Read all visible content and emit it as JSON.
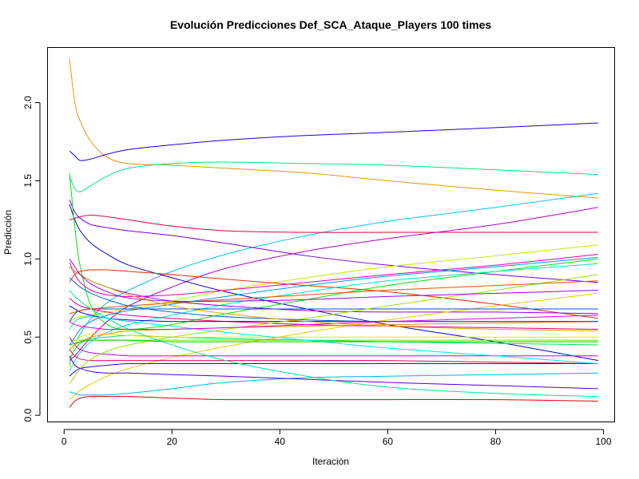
{
  "chart_data": {
    "type": "line",
    "title": "Evolución Predicciones Def_SCA_Ataque_Players 100 times",
    "xlabel": "Iteración",
    "ylabel": "Predicción",
    "xlim": [
      -3,
      102
    ],
    "ylim": [
      -0.04,
      2.35
    ],
    "xticks": [
      0,
      20,
      40,
      60,
      80,
      100
    ],
    "yticks": [
      0.0,
      0.5,
      1.0,
      1.5,
      2.0
    ],
    "xtick_labels": [
      "0",
      "20",
      "40",
      "60",
      "80",
      "100"
    ],
    "ytick_labels": [
      "0.0",
      "0.5",
      "1.0",
      "1.5",
      "2.0"
    ],
    "x": [
      1,
      2,
      3,
      5,
      8,
      12,
      20,
      30,
      45,
      60,
      80,
      99
    ],
    "series": [
      {
        "color": "#e69500",
        "values": [
          2.28,
          2.0,
          1.88,
          1.75,
          1.65,
          1.61,
          1.6,
          1.58,
          1.55,
          1.5,
          1.44,
          1.39
        ]
      },
      {
        "color": "#1a00e6",
        "values": [
          1.69,
          1.66,
          1.63,
          1.64,
          1.67,
          1.7,
          1.73,
          1.76,
          1.79,
          1.81,
          1.84,
          1.87
        ]
      },
      {
        "color": "#00e680",
        "values": [
          1.53,
          1.45,
          1.43,
          1.47,
          1.53,
          1.58,
          1.61,
          1.62,
          1.61,
          1.6,
          1.57,
          1.54
        ]
      },
      {
        "color": "#00c8e6",
        "values": [
          0.32,
          0.45,
          0.52,
          0.62,
          0.72,
          0.8,
          0.92,
          1.03,
          1.15,
          1.24,
          1.33,
          1.42
        ]
      },
      {
        "color": "#e6003c",
        "values": [
          1.25,
          1.26,
          1.27,
          1.28,
          1.27,
          1.25,
          1.21,
          1.18,
          1.17,
          1.17,
          1.17,
          1.17
        ]
      },
      {
        "color": "#b400c8",
        "values": [
          0.35,
          0.38,
          0.42,
          0.5,
          0.6,
          0.7,
          0.82,
          0.94,
          1.05,
          1.13,
          1.22,
          1.33
        ]
      },
      {
        "color": "#7800e6",
        "values": [
          1.38,
          1.3,
          1.26,
          1.22,
          1.2,
          1.18,
          1.15,
          1.1,
          1.02,
          0.96,
          0.9,
          0.85
        ]
      },
      {
        "color": "#0000c8",
        "values": [
          1.35,
          1.25,
          1.18,
          1.1,
          1.03,
          0.96,
          0.88,
          0.79,
          0.68,
          0.58,
          0.47,
          0.35
        ]
      },
      {
        "color": "#c8e600",
        "values": [
          0.6,
          0.62,
          0.63,
          0.64,
          0.66,
          0.68,
          0.73,
          0.8,
          0.88,
          0.95,
          1.02,
          1.09
        ]
      },
      {
        "color": "#00e600",
        "values": [
          1.55,
          1.2,
          0.95,
          0.7,
          0.58,
          0.55,
          0.58,
          0.65,
          0.74,
          0.83,
          0.92,
          1.0
        ]
      },
      {
        "color": "#e600b4",
        "values": [
          0.98,
          0.9,
          0.85,
          0.8,
          0.77,
          0.76,
          0.77,
          0.8,
          0.85,
          0.9,
          0.96,
          1.03
        ]
      },
      {
        "color": "#0096e6",
        "values": [
          0.45,
          0.5,
          0.55,
          0.6,
          0.64,
          0.67,
          0.71,
          0.76,
          0.83,
          0.89,
          0.95,
          1.01
        ]
      },
      {
        "color": "#e63200",
        "values": [
          0.85,
          0.9,
          0.92,
          0.93,
          0.93,
          0.92,
          0.9,
          0.87,
          0.83,
          0.79,
          0.71,
          0.62
        ]
      },
      {
        "color": "#00e6c8",
        "values": [
          0.28,
          0.35,
          0.4,
          0.47,
          0.53,
          0.58,
          0.64,
          0.71,
          0.79,
          0.86,
          0.92,
          0.97
        ]
      },
      {
        "color": "#9600e6",
        "values": [
          0.95,
          0.92,
          0.9,
          0.86,
          0.82,
          0.78,
          0.73,
          0.7,
          0.67,
          0.66,
          0.66,
          0.65
        ]
      },
      {
        "color": "#e6c800",
        "values": [
          0.1,
          0.13,
          0.16,
          0.2,
          0.25,
          0.3,
          0.37,
          0.44,
          0.53,
          0.61,
          0.7,
          0.78
        ]
      },
      {
        "color": "#0050e6",
        "values": [
          0.6,
          0.65,
          0.67,
          0.68,
          0.68,
          0.68,
          0.68,
          0.68,
          0.68,
          0.68,
          0.68,
          0.68
        ]
      },
      {
        "color": "#64e600",
        "values": [
          0.48,
          0.48,
          0.48,
          0.48,
          0.48,
          0.48,
          0.48,
          0.48,
          0.48,
          0.48,
          0.48,
          0.48
        ]
      },
      {
        "color": "#e60078",
        "values": [
          0.75,
          0.72,
          0.7,
          0.68,
          0.66,
          0.64,
          0.62,
          0.6,
          0.58,
          0.57,
          0.56,
          0.55
        ]
      },
      {
        "color": "#00b4e6",
        "values": [
          0.15,
          0.14,
          0.13,
          0.13,
          0.13,
          0.14,
          0.17,
          0.21,
          0.24,
          0.25,
          0.26,
          0.27
        ]
      },
      {
        "color": "#e60000",
        "values": [
          0.05,
          0.09,
          0.11,
          0.12,
          0.12,
          0.12,
          0.11,
          0.1,
          0.1,
          0.1,
          0.1,
          0.09
        ]
      },
      {
        "color": "#3200e6",
        "values": [
          0.25,
          0.28,
          0.3,
          0.31,
          0.32,
          0.33,
          0.33,
          0.33,
          0.33,
          0.33,
          0.33,
          0.33
        ]
      },
      {
        "color": "#e68c00",
        "values": [
          0.42,
          0.45,
          0.47,
          0.5,
          0.52,
          0.54,
          0.55,
          0.56,
          0.57,
          0.58,
          0.59,
          0.6
        ]
      },
      {
        "color": "#00e650",
        "values": [
          0.36,
          0.42,
          0.46,
          0.49,
          0.5,
          0.51,
          0.5,
          0.49,
          0.48,
          0.47,
          0.46,
          0.45
        ]
      },
      {
        "color": "#c800e6",
        "values": [
          0.5,
          0.45,
          0.42,
          0.4,
          0.39,
          0.38,
          0.38,
          0.38,
          0.38,
          0.38,
          0.38,
          0.38
        ]
      },
      {
        "color": "#e6e600",
        "values": [
          0.3,
          0.45,
          0.5,
          0.52,
          0.52,
          0.51,
          0.5,
          0.5,
          0.5,
          0.5,
          0.5,
          0.5
        ]
      },
      {
        "color": "#0000e6",
        "values": [
          0.7,
          0.68,
          0.66,
          0.64,
          0.62,
          0.61,
          0.6,
          0.6,
          0.6,
          0.6,
          0.6,
          0.6
        ]
      },
      {
        "color": "#e6006e",
        "values": [
          0.42,
          0.38,
          0.36,
          0.35,
          0.35,
          0.35,
          0.35,
          0.35,
          0.35,
          0.35,
          0.34,
          0.33
        ]
      },
      {
        "color": "#00e6e6",
        "values": [
          0.55,
          0.6,
          0.62,
          0.63,
          0.62,
          0.6,
          0.57,
          0.53,
          0.48,
          0.43,
          0.38,
          0.33
        ]
      },
      {
        "color": "#96e600",
        "values": [
          0.2,
          0.25,
          0.3,
          0.36,
          0.41,
          0.45,
          0.5,
          0.55,
          0.62,
          0.7,
          0.8,
          0.9
        ]
      },
      {
        "color": "#e65000",
        "values": [
          0.65,
          0.66,
          0.67,
          0.68,
          0.69,
          0.7,
          0.72,
          0.74,
          0.77,
          0.8,
          0.83,
          0.86
        ]
      },
      {
        "color": "#5000e6",
        "values": [
          0.38,
          0.32,
          0.3,
          0.28,
          0.27,
          0.27,
          0.26,
          0.25,
          0.23,
          0.21,
          0.19,
          0.17
        ]
      },
      {
        "color": "#00e696",
        "values": [
          0.8,
          0.76,
          0.73,
          0.68,
          0.62,
          0.55,
          0.45,
          0.35,
          0.25,
          0.18,
          0.14,
          0.12
        ]
      },
      {
        "color": "#e600e6",
        "values": [
          0.6,
          0.58,
          0.57,
          0.56,
          0.55,
          0.55,
          0.55,
          0.56,
          0.58,
          0.6,
          0.62,
          0.64
        ]
      },
      {
        "color": "#0064e6",
        "values": [
          0.88,
          0.85,
          0.82,
          0.78,
          0.74,
          0.7,
          0.66,
          0.63,
          0.61,
          0.6,
          0.6,
          0.6
        ]
      },
      {
        "color": "#e6a000",
        "values": [
          0.95,
          0.92,
          0.9,
          0.86,
          0.82,
          0.77,
          0.7,
          0.65,
          0.6,
          0.57,
          0.55,
          0.54
        ]
      },
      {
        "color": "#00c800",
        "values": [
          0.45,
          0.46,
          0.47,
          0.48,
          0.48,
          0.48,
          0.47,
          0.47,
          0.47,
          0.47,
          0.47,
          0.47
        ]
      },
      {
        "color": "#a000e6",
        "values": [
          1.0,
          0.95,
          0.9,
          0.84,
          0.79,
          0.75,
          0.73,
          0.73,
          0.74,
          0.76,
          0.78,
          0.8
        ]
      }
    ]
  }
}
